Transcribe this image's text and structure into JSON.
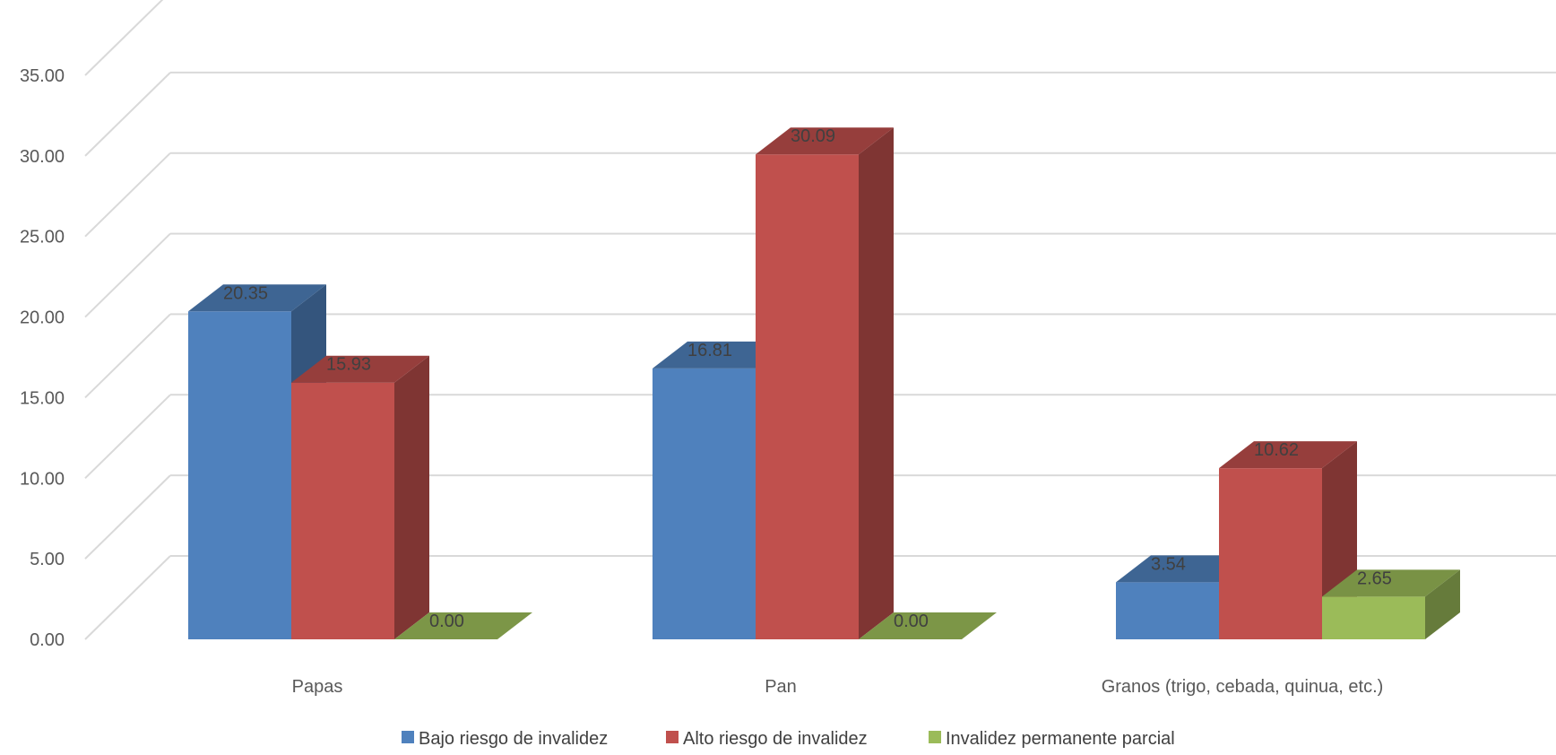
{
  "chart_data": {
    "type": "bar",
    "subtype": "3d-clustered-column",
    "title": "",
    "xlabel": "",
    "ylabel": "",
    "categories": [
      "Papas",
      "Pan",
      "Granos (trigo, cebada, quinua, etc.)"
    ],
    "series": [
      {
        "name": "Bajo riesgo de invalidez",
        "values": [
          20.35,
          16.81,
          3.54
        ],
        "color": "#4F81BD"
      },
      {
        "name": "Alto riesgo de invalidez",
        "values": [
          15.93,
          30.09,
          10.62
        ],
        "color": "#C0504D"
      },
      {
        "name": "Invalidez permanente parcial",
        "values": [
          0.0,
          0.0,
          2.65
        ],
        "color": "#9BBB59"
      }
    ],
    "ylim": [
      0,
      35
    ],
    "yticks": [
      "0.00",
      "5.00",
      "10.00",
      "15.00",
      "20.00",
      "25.00",
      "30.00",
      "35.00"
    ],
    "data_labels": [
      [
        "20.35",
        "16.81",
        "3.54"
      ],
      [
        "15.93",
        "30.09",
        "10.62"
      ],
      [
        "0.00",
        "0.00",
        "2.65"
      ]
    ],
    "grid": true,
    "legend_position": "bottom"
  }
}
